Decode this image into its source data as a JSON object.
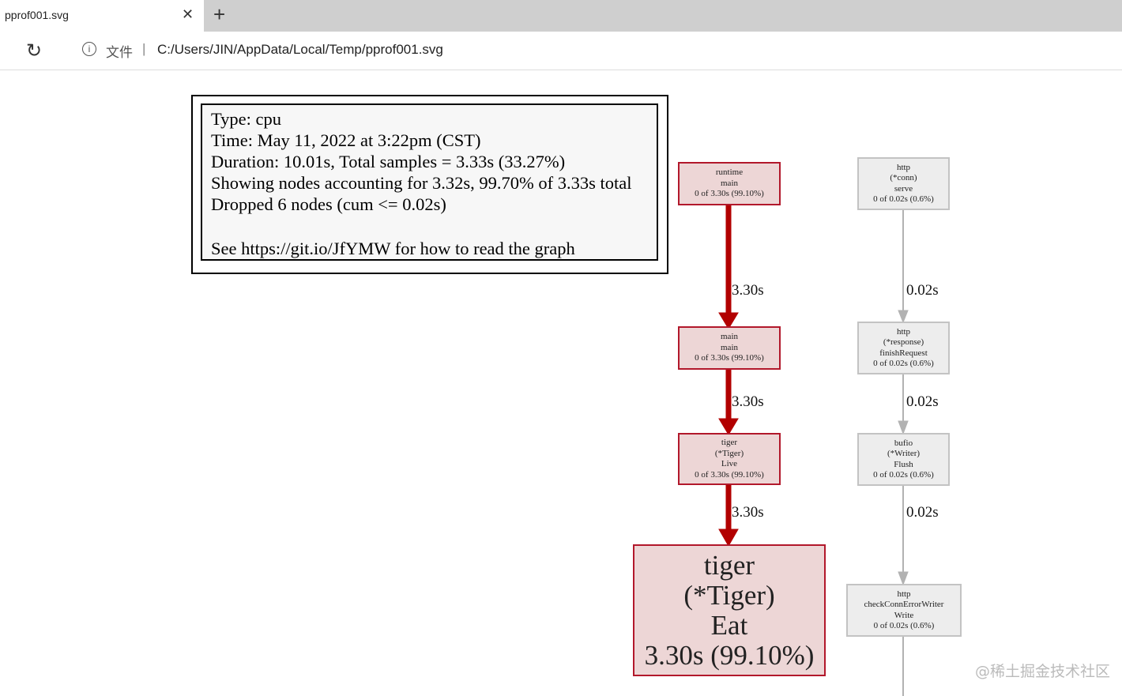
{
  "browser": {
    "tab_title": "pprof001.svg",
    "file_label": "文件",
    "url": "C:/Users/JIN/AppData/Local/Temp/pprof001.svg"
  },
  "legend": {
    "lines": [
      "Type: cpu",
      "Time: May 11, 2022 at 3:22pm (CST)",
      "Duration: 10.01s, Total samples = 3.33s (33.27%)",
      "Showing nodes accounting for 3.32s, 99.70% of 3.33s total",
      "Dropped 6 nodes (cum <= 0.02s)",
      "",
      "See https://git.io/JfYMW for how to read the graph"
    ]
  },
  "nodes": {
    "runtime_main": [
      "runtime",
      "main",
      "0 of 3.30s (99.10%)"
    ],
    "main_main": [
      "main",
      "main",
      "0 of 3.30s (99.10%)"
    ],
    "tiger_live": [
      "tiger",
      "(*Tiger)",
      "Live",
      "0 of 3.30s (99.10%)"
    ],
    "tiger_eat": [
      "tiger",
      "(*Tiger)",
      "Eat",
      "3.30s (99.10%)"
    ],
    "http_serve": [
      "http",
      "(*conn)",
      "serve",
      "0 of 0.02s (0.6%)"
    ],
    "http_finish": [
      "http",
      "(*response)",
      "finishRequest",
      "0 of 0.02s (0.6%)"
    ],
    "bufio_flush": [
      "bufio",
      "(*Writer)",
      "Flush",
      "0 of 0.02s (0.6%)"
    ],
    "http_check": [
      "http",
      "checkConnErrorWriter",
      "Write",
      "0 of 0.02s (0.6%)"
    ]
  },
  "edges": {
    "red": [
      "3.30s",
      "3.30s",
      "3.30s"
    ],
    "gray": [
      "0.02s",
      "0.02s",
      "0.02s"
    ]
  },
  "colors": {
    "hot": "#b20000",
    "cold": "#b2b2b2"
  },
  "watermark": "@稀土掘金技术社区"
}
